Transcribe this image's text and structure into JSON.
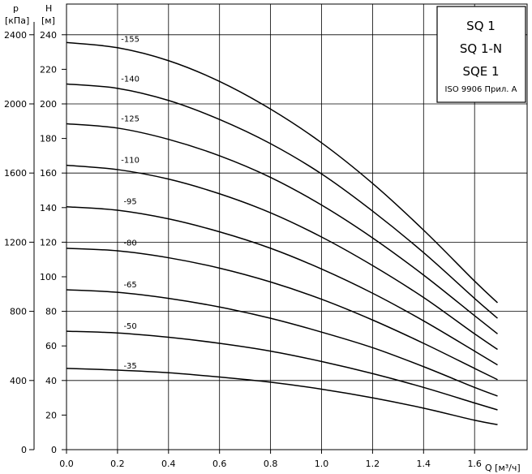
{
  "chart_data": {
    "type": "line",
    "x_axis": {
      "label": "Q [м³/ч]",
      "range": [
        0,
        1.8
      ],
      "ticks": [
        0.0,
        0.2,
        0.4,
        0.6,
        0.8,
        1.0,
        1.2,
        1.4,
        1.6
      ],
      "tick_labels": [
        "0.0",
        "0.2",
        "0.4",
        "0.6",
        "0.8",
        "1.0",
        "1.2",
        "1.4",
        "1.6"
      ]
    },
    "y_axis_left": {
      "label": "H",
      "unit": "[м]",
      "range": [
        0,
        250
      ],
      "ticks": [
        0,
        20,
        40,
        60,
        80,
        100,
        120,
        140,
        160,
        180,
        200,
        220,
        240
      ],
      "tick_labels": [
        "0",
        "20",
        "40",
        "60",
        "80",
        "100",
        "120",
        "140",
        "160",
        "180",
        "200",
        "220",
        "240"
      ]
    },
    "y_axis_outer": {
      "label": "p",
      "unit": "[кПа]",
      "ticks": [
        0,
        400,
        800,
        1200,
        1600,
        2000,
        2400
      ],
      "tick_labels": [
        "0",
        "400",
        "800",
        "1200",
        "1600",
        "2000",
        "2400"
      ]
    },
    "grid": true,
    "legend_box": {
      "position": "top-right",
      "lines": [
        "SQ 1",
        "SQ 1-N",
        "SQE 1"
      ],
      "note": "ISO 9906 Прил. А"
    },
    "series": [
      {
        "label": "-35",
        "label_at": [
          0.25,
          47
        ],
        "points": [
          [
            0,
            47
          ],
          [
            0.2,
            46
          ],
          [
            0.4,
            44.5
          ],
          [
            0.6,
            42
          ],
          [
            0.8,
            39
          ],
          [
            1.0,
            35
          ],
          [
            1.2,
            30
          ],
          [
            1.4,
            24
          ],
          [
            1.6,
            17
          ],
          [
            1.69,
            14.5
          ]
        ]
      },
      {
        "label": "-50",
        "label_at": [
          0.25,
          70
        ],
        "points": [
          [
            0,
            68.5
          ],
          [
            0.2,
            67.5
          ],
          [
            0.4,
            65
          ],
          [
            0.6,
            61.5
          ],
          [
            0.8,
            57
          ],
          [
            1.0,
            51
          ],
          [
            1.2,
            44
          ],
          [
            1.4,
            36
          ],
          [
            1.6,
            27
          ],
          [
            1.69,
            23
          ]
        ]
      },
      {
        "label": "-65",
        "label_at": [
          0.25,
          94
        ],
        "points": [
          [
            0,
            92.5
          ],
          [
            0.2,
            91
          ],
          [
            0.4,
            87.5
          ],
          [
            0.6,
            82.5
          ],
          [
            0.8,
            76
          ],
          [
            1.0,
            68
          ],
          [
            1.2,
            59
          ],
          [
            1.4,
            48
          ],
          [
            1.6,
            36
          ],
          [
            1.69,
            31
          ]
        ]
      },
      {
        "label": "-80",
        "label_at": [
          0.25,
          118
        ],
        "points": [
          [
            0,
            116.5
          ],
          [
            0.2,
            115
          ],
          [
            0.4,
            111
          ],
          [
            0.6,
            105
          ],
          [
            0.8,
            97
          ],
          [
            1.0,
            87
          ],
          [
            1.2,
            75
          ],
          [
            1.4,
            61.5
          ],
          [
            1.6,
            47
          ],
          [
            1.69,
            40.5
          ]
        ]
      },
      {
        "label": "-95",
        "label_at": [
          0.25,
          142
        ],
        "points": [
          [
            0,
            140.5
          ],
          [
            0.2,
            138.5
          ],
          [
            0.4,
            133.5
          ],
          [
            0.6,
            126
          ],
          [
            0.8,
            116.5
          ],
          [
            1.0,
            104.5
          ],
          [
            1.2,
            90.5
          ],
          [
            1.4,
            74.5
          ],
          [
            1.6,
            57
          ],
          [
            1.69,
            49
          ]
        ]
      },
      {
        "label": "-110",
        "label_at": [
          0.25,
          166
        ],
        "points": [
          [
            0,
            164.5
          ],
          [
            0.2,
            162
          ],
          [
            0.4,
            156.5
          ],
          [
            0.6,
            148
          ],
          [
            0.8,
            137
          ],
          [
            1.0,
            123
          ],
          [
            1.2,
            106.5
          ],
          [
            1.4,
            88
          ],
          [
            1.6,
            67
          ],
          [
            1.69,
            58
          ]
        ]
      },
      {
        "label": "-125",
        "label_at": [
          0.25,
          190
        ],
        "points": [
          [
            0,
            188.5
          ],
          [
            0.2,
            186
          ],
          [
            0.4,
            179.5
          ],
          [
            0.6,
            170
          ],
          [
            0.8,
            157.5
          ],
          [
            1.0,
            141.5
          ],
          [
            1.2,
            122.5
          ],
          [
            1.4,
            101
          ],
          [
            1.6,
            77.5
          ],
          [
            1.69,
            67
          ]
        ]
      },
      {
        "label": "-140",
        "label_at": [
          0.25,
          213
        ],
        "points": [
          [
            0,
            211.5
          ],
          [
            0.2,
            209
          ],
          [
            0.4,
            202
          ],
          [
            0.6,
            191
          ],
          [
            0.8,
            177
          ],
          [
            1.0,
            159.5
          ],
          [
            1.2,
            138
          ],
          [
            1.4,
            114
          ],
          [
            1.6,
            87.5
          ],
          [
            1.69,
            76
          ]
        ]
      },
      {
        "label": "-155",
        "label_at": [
          0.25,
          236
        ],
        "points": [
          [
            0,
            235.5
          ],
          [
            0.2,
            232.5
          ],
          [
            0.4,
            225
          ],
          [
            0.6,
            213
          ],
          [
            0.8,
            197
          ],
          [
            1.0,
            177.5
          ],
          [
            1.2,
            154
          ],
          [
            1.4,
            127
          ],
          [
            1.6,
            97.5
          ],
          [
            1.69,
            85
          ]
        ]
      }
    ]
  }
}
